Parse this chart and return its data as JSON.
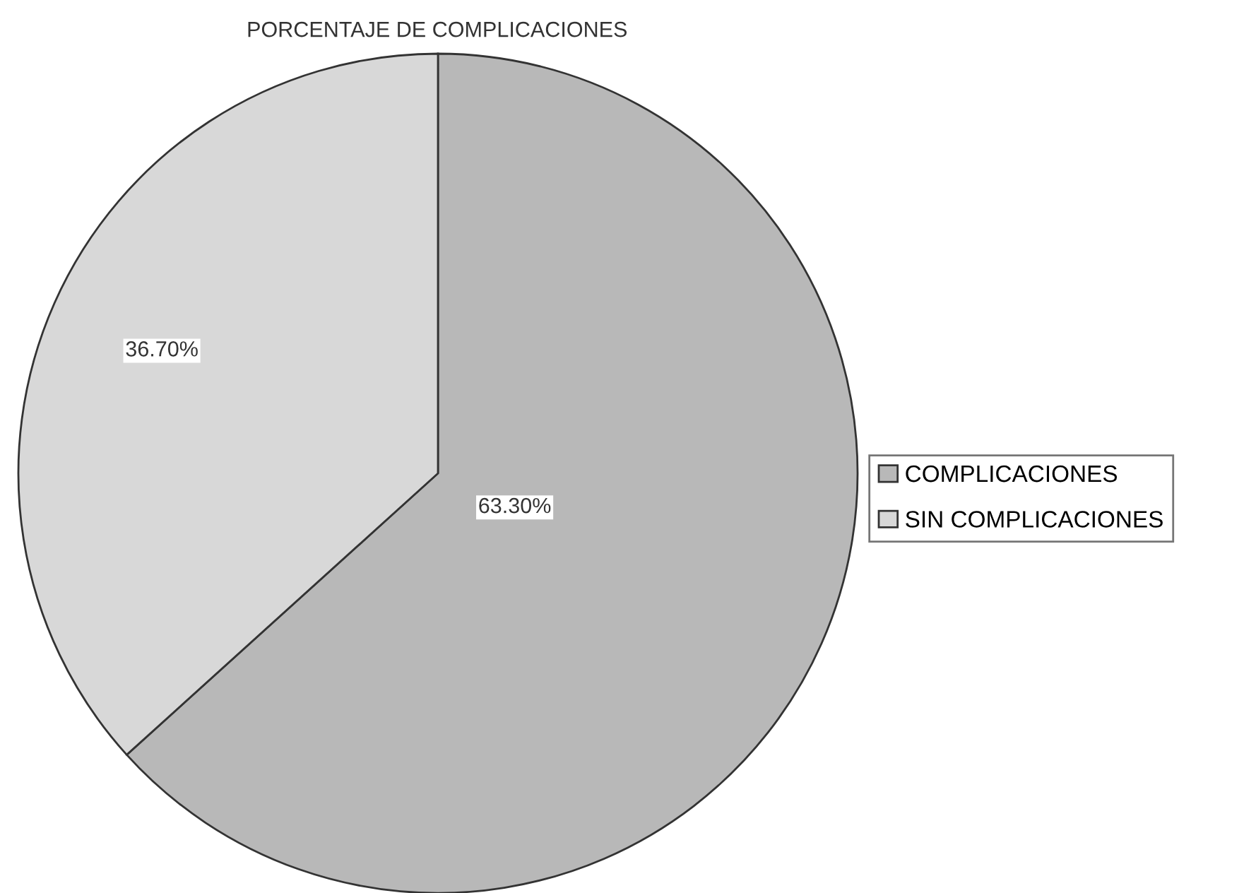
{
  "chart_data": {
    "type": "pie",
    "title": "PORCENTAJE DE COMPLICACIONES",
    "categories": [
      "COMPLICACIONES",
      "SIN COMPLICACIONES"
    ],
    "values": [
      63.3,
      36.7
    ],
    "colors": [
      "#b8b8b8",
      "#d8d8d8"
    ],
    "value_labels": [
      "63.30%",
      "36.70%"
    ],
    "legend": "right"
  }
}
